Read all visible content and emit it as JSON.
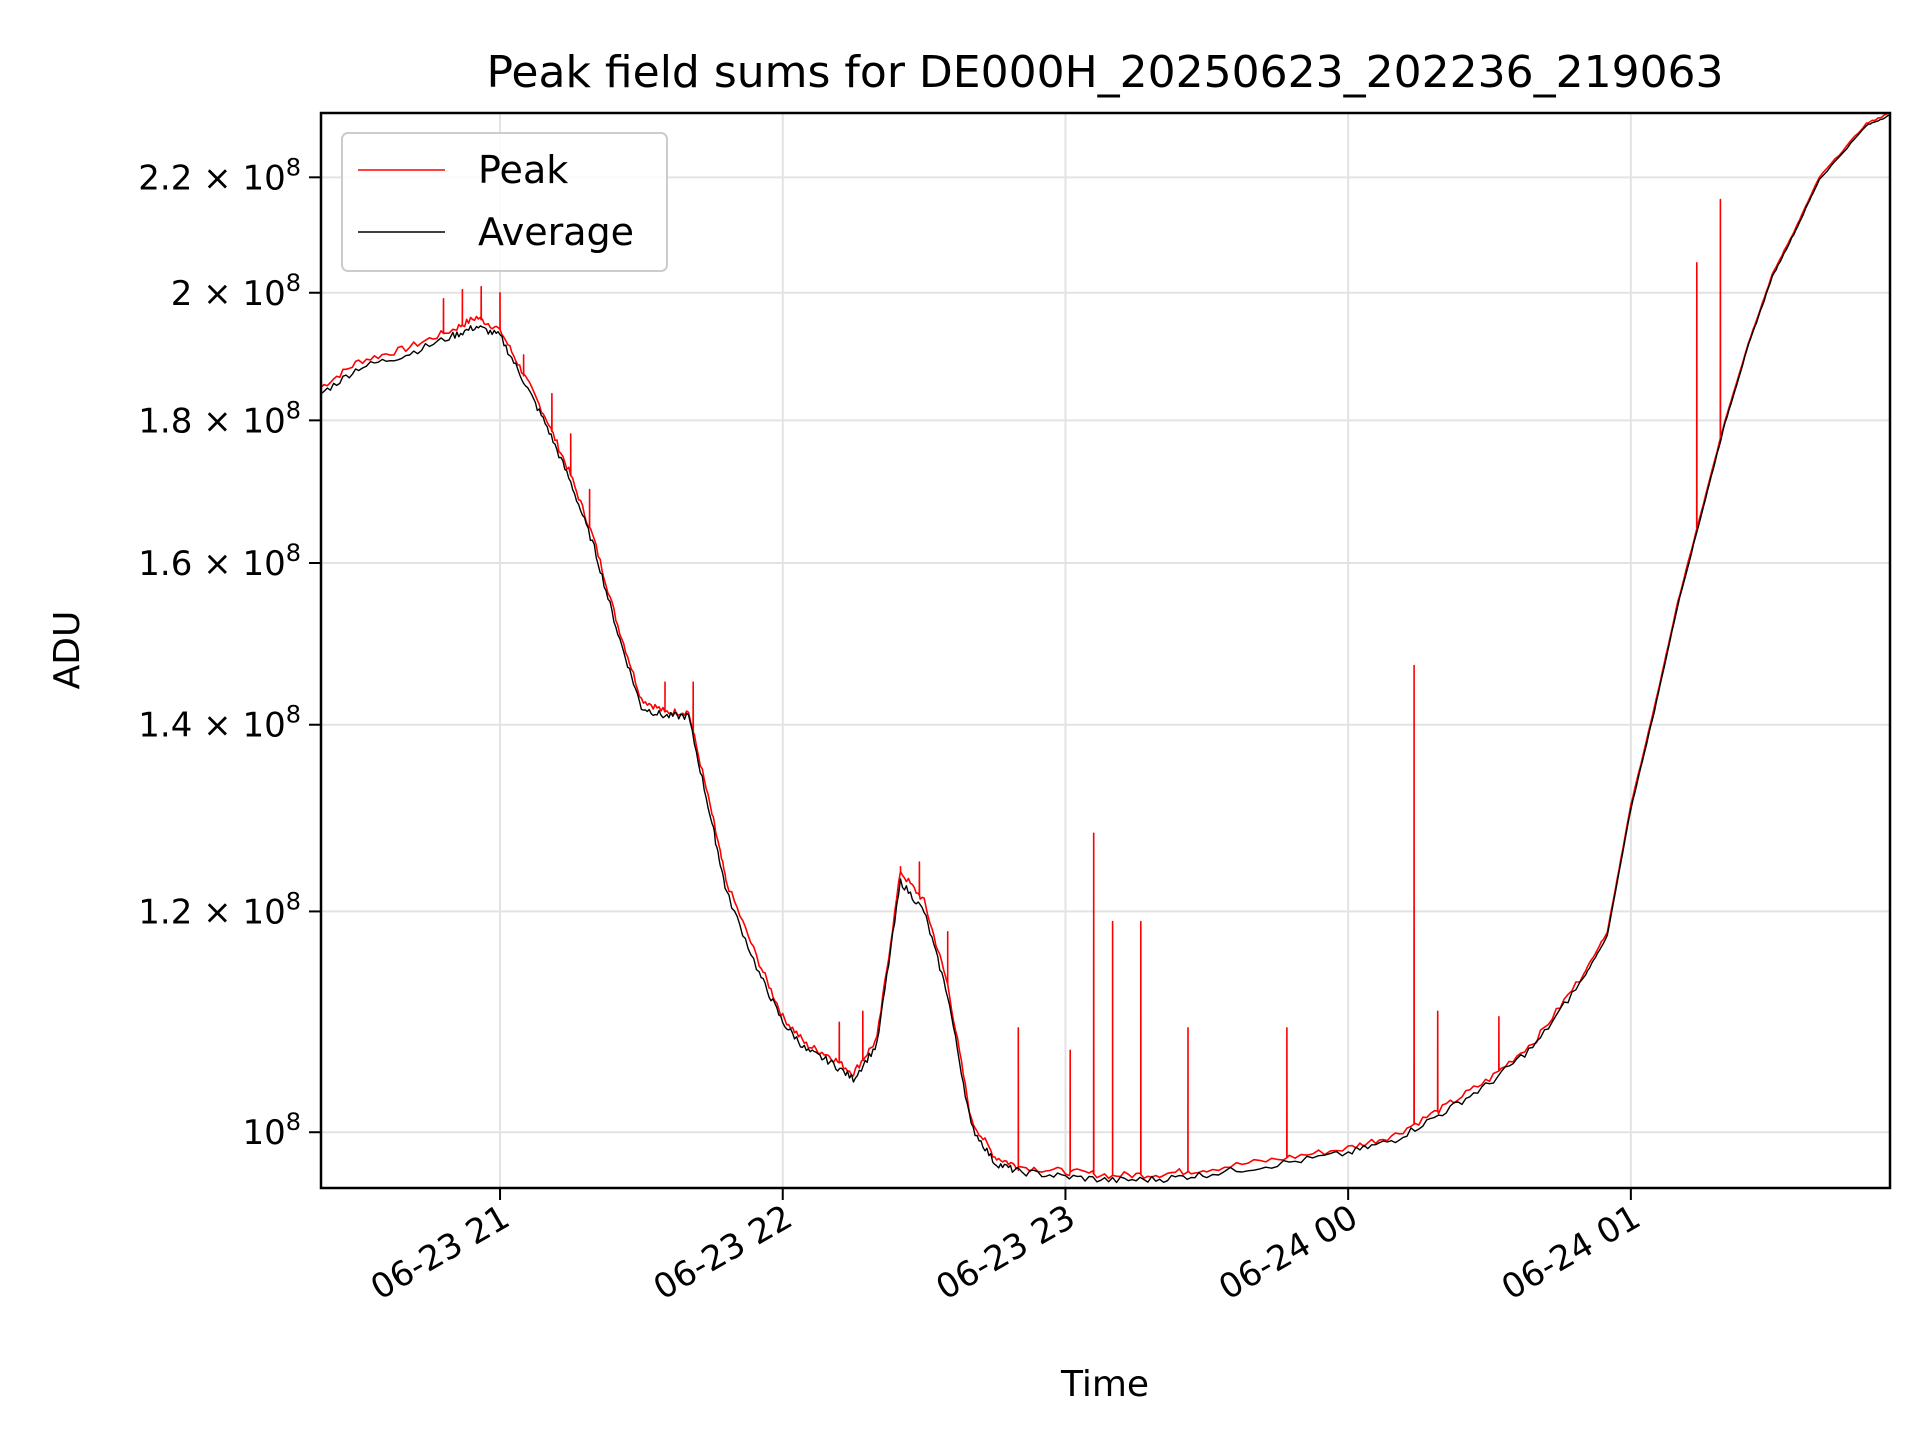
{
  "chart_data": {
    "type": "line",
    "title": "Peak field sums for DE000H_20250623_202236_219063",
    "xlabel": "Time",
    "ylabel": "ADU",
    "x_ticks": [
      "06-23 21",
      "06-23 22",
      "06-23 23",
      "06-24 00",
      "06-24 01"
    ],
    "y_ticks": [
      {
        "value": 100000000,
        "mantissa": "",
        "exp": "8"
      },
      {
        "value": 120000000,
        "mantissa": "1.2",
        "exp": "8"
      },
      {
        "value": 140000000,
        "mantissa": "1.4",
        "exp": "8"
      },
      {
        "value": 160000000,
        "mantissa": "1.6",
        "exp": "8"
      },
      {
        "value": 180000000,
        "mantissa": "1.8",
        "exp": "8"
      },
      {
        "value": 200000000,
        "mantissa": "2",
        "exp": "8"
      },
      {
        "value": 220000000,
        "mantissa": "2.2",
        "exp": "8"
      }
    ],
    "xlim": [
      "2025-06-23 20:22",
      "2025-06-24 01:55"
    ],
    "ylim": [
      95500000,
      232000000
    ],
    "yscale": "log",
    "grid": true,
    "legend": "upper left",
    "series": [
      {
        "name": "Peak",
        "color": "#ff0000",
        "points": [
          [
            "2025-06-23 20:22",
            185000000
          ],
          [
            "2025-06-23 20:30",
            189000000
          ],
          [
            "2025-06-23 20:40",
            191000000
          ],
          [
            "2025-06-23 20:50",
            194000000
          ],
          [
            "2025-06-23 20:55",
            196000000
          ],
          [
            "2025-06-23 21:00",
            194000000
          ],
          [
            "2025-06-23 21:05",
            187000000
          ],
          [
            "2025-06-23 21:10",
            180000000
          ],
          [
            "2025-06-23 21:15",
            172000000
          ],
          [
            "2025-06-23 21:20",
            163000000
          ],
          [
            "2025-06-23 21:25",
            152000000
          ],
          [
            "2025-06-23 21:30",
            143000000
          ],
          [
            "2025-06-23 21:35",
            141500000
          ],
          [
            "2025-06-23 21:40",
            141500000
          ],
          [
            "2025-06-23 21:45",
            130000000
          ],
          [
            "2025-06-23 21:48",
            123000000
          ],
          [
            "2025-06-23 21:55",
            115000000
          ],
          [
            "2025-06-23 22:00",
            110000000
          ],
          [
            "2025-06-23 22:05",
            107500000
          ],
          [
            "2025-06-23 22:10",
            106500000
          ],
          [
            "2025-06-23 22:15",
            105000000
          ],
          [
            "2025-06-23 22:20",
            108000000
          ],
          [
            "2025-06-23 22:25",
            124000000
          ],
          [
            "2025-06-23 22:30",
            121000000
          ],
          [
            "2025-06-23 22:35",
            113000000
          ],
          [
            "2025-06-23 22:40",
            101000000
          ],
          [
            "2025-06-23 22:45",
            98000000
          ],
          [
            "2025-06-23 22:50",
            97200000
          ],
          [
            "2025-06-23 23:00",
            96800000
          ],
          [
            "2025-06-23 23:10",
            96500000
          ],
          [
            "2025-06-23 23:20",
            96600000
          ],
          [
            "2025-06-23 23:30",
            97000000
          ],
          [
            "2025-06-23 23:45",
            97800000
          ],
          [
            "2025-06-24 00:00",
            98700000
          ],
          [
            "2025-06-24 00:10",
            99800000
          ],
          [
            "2025-06-24 00:20",
            102000000
          ],
          [
            "2025-06-24 00:30",
            104500000
          ],
          [
            "2025-06-24 00:40",
            108000000
          ],
          [
            "2025-06-24 00:50",
            114000000
          ],
          [
            "2025-06-24 00:55",
            118000000
          ],
          [
            "2025-06-24 01:00",
            131000000
          ],
          [
            "2025-06-24 01:05",
            142000000
          ],
          [
            "2025-06-24 01:10",
            155000000
          ],
          [
            "2025-06-24 01:15",
            167000000
          ],
          [
            "2025-06-24 01:20",
            180000000
          ],
          [
            "2025-06-24 01:25",
            192000000
          ],
          [
            "2025-06-24 01:30",
            203000000
          ],
          [
            "2025-06-24 01:35",
            211000000
          ],
          [
            "2025-06-24 01:40",
            220000000
          ],
          [
            "2025-06-24 01:50",
            230000000
          ],
          [
            "2025-06-24 01:55",
            232000000
          ]
        ],
        "spikes": [
          [
            "2025-06-23 20:48",
            199000000
          ],
          [
            "2025-06-23 20:52",
            200500000
          ],
          [
            "2025-06-23 20:56",
            201000000
          ],
          [
            "2025-06-23 21:00",
            200000000
          ],
          [
            "2025-06-23 21:05",
            190000000
          ],
          [
            "2025-06-23 21:11",
            184000000
          ],
          [
            "2025-06-23 21:15",
            178000000
          ],
          [
            "2025-06-23 21:19",
            170000000
          ],
          [
            "2025-06-23 21:35",
            145000000
          ],
          [
            "2025-06-23 21:41",
            145000000
          ],
          [
            "2025-06-23 21:48",
            123000000
          ],
          [
            "2025-06-23 22:12",
            109500000
          ],
          [
            "2025-06-23 22:17",
            110500000
          ],
          [
            "2025-06-23 22:25",
            124500000
          ],
          [
            "2025-06-23 22:29",
            125000000
          ],
          [
            "2025-06-23 22:35",
            118000000
          ],
          [
            "2025-06-23 22:50",
            109000000
          ],
          [
            "2025-06-23 23:01",
            107000000
          ],
          [
            "2025-06-23 23:06",
            128000000
          ],
          [
            "2025-06-23 23:10",
            119000000
          ],
          [
            "2025-06-23 23:16",
            119000000
          ],
          [
            "2025-06-23 23:26",
            109000000
          ],
          [
            "2025-06-23 23:47",
            109000000
          ],
          [
            "2025-06-24 00:14",
            147000000
          ],
          [
            "2025-06-24 00:19",
            110500000
          ],
          [
            "2025-06-24 00:32",
            110000000
          ],
          [
            "2025-06-24 01:14",
            205000000
          ],
          [
            "2025-06-24 01:19",
            216000000
          ]
        ]
      },
      {
        "name": "Average",
        "color": "#000000",
        "points": [
          [
            "2025-06-23 20:22",
            184000000
          ],
          [
            "2025-06-23 20:30",
            188000000
          ],
          [
            "2025-06-23 20:40",
            190000000
          ],
          [
            "2025-06-23 20:50",
            193000000
          ],
          [
            "2025-06-23 20:55",
            194500000
          ],
          [
            "2025-06-23 21:00",
            193000000
          ],
          [
            "2025-06-23 21:05",
            186000000
          ],
          [
            "2025-06-23 21:10",
            179000000
          ],
          [
            "2025-06-23 21:15",
            171000000
          ],
          [
            "2025-06-23 21:20",
            162000000
          ],
          [
            "2025-06-23 21:25",
            151000000
          ],
          [
            "2025-06-23 21:30",
            142000000
          ],
          [
            "2025-06-23 21:35",
            141000000
          ],
          [
            "2025-06-23 21:40",
            141000000
          ],
          [
            "2025-06-23 21:45",
            129000000
          ],
          [
            "2025-06-23 21:48",
            122000000
          ],
          [
            "2025-06-23 21:55",
            114000000
          ],
          [
            "2025-06-23 22:00",
            109500000
          ],
          [
            "2025-06-23 22:05",
            107000000
          ],
          [
            "2025-06-23 22:10",
            106000000
          ],
          [
            "2025-06-23 22:15",
            104500000
          ],
          [
            "2025-06-23 22:20",
            107500000
          ],
          [
            "2025-06-23 22:25",
            123000000
          ],
          [
            "2025-06-23 22:30",
            120000000
          ],
          [
            "2025-06-23 22:35",
            112000000
          ],
          [
            "2025-06-23 22:40",
            100500000
          ],
          [
            "2025-06-23 22:45",
            97500000
          ],
          [
            "2025-06-23 22:50",
            96800000
          ],
          [
            "2025-06-23 23:00",
            96400000
          ],
          [
            "2025-06-23 23:10",
            96100000
          ],
          [
            "2025-06-23 23:20",
            96200000
          ],
          [
            "2025-06-23 23:30",
            96600000
          ],
          [
            "2025-06-23 23:45",
            97400000
          ],
          [
            "2025-06-24 00:00",
            98300000
          ],
          [
            "2025-06-24 00:10",
            99400000
          ],
          [
            "2025-06-24 00:20",
            101600000
          ],
          [
            "2025-06-24 00:30",
            104100000
          ],
          [
            "2025-06-24 00:40",
            107600000
          ],
          [
            "2025-06-24 00:50",
            113600000
          ],
          [
            "2025-06-24 00:55",
            117600000
          ],
          [
            "2025-06-24 01:00",
            130600000
          ],
          [
            "2025-06-24 01:05",
            141600000
          ],
          [
            "2025-06-24 01:10",
            154600000
          ],
          [
            "2025-06-24 01:15",
            166600000
          ],
          [
            "2025-06-24 01:20",
            179600000
          ],
          [
            "2025-06-24 01:25",
            191600000
          ],
          [
            "2025-06-24 01:30",
            202600000
          ],
          [
            "2025-06-24 01:35",
            210600000
          ],
          [
            "2025-06-24 01:40",
            219600000
          ],
          [
            "2025-06-24 01:50",
            229600000
          ],
          [
            "2025-06-24 01:55",
            231600000
          ]
        ]
      }
    ]
  }
}
